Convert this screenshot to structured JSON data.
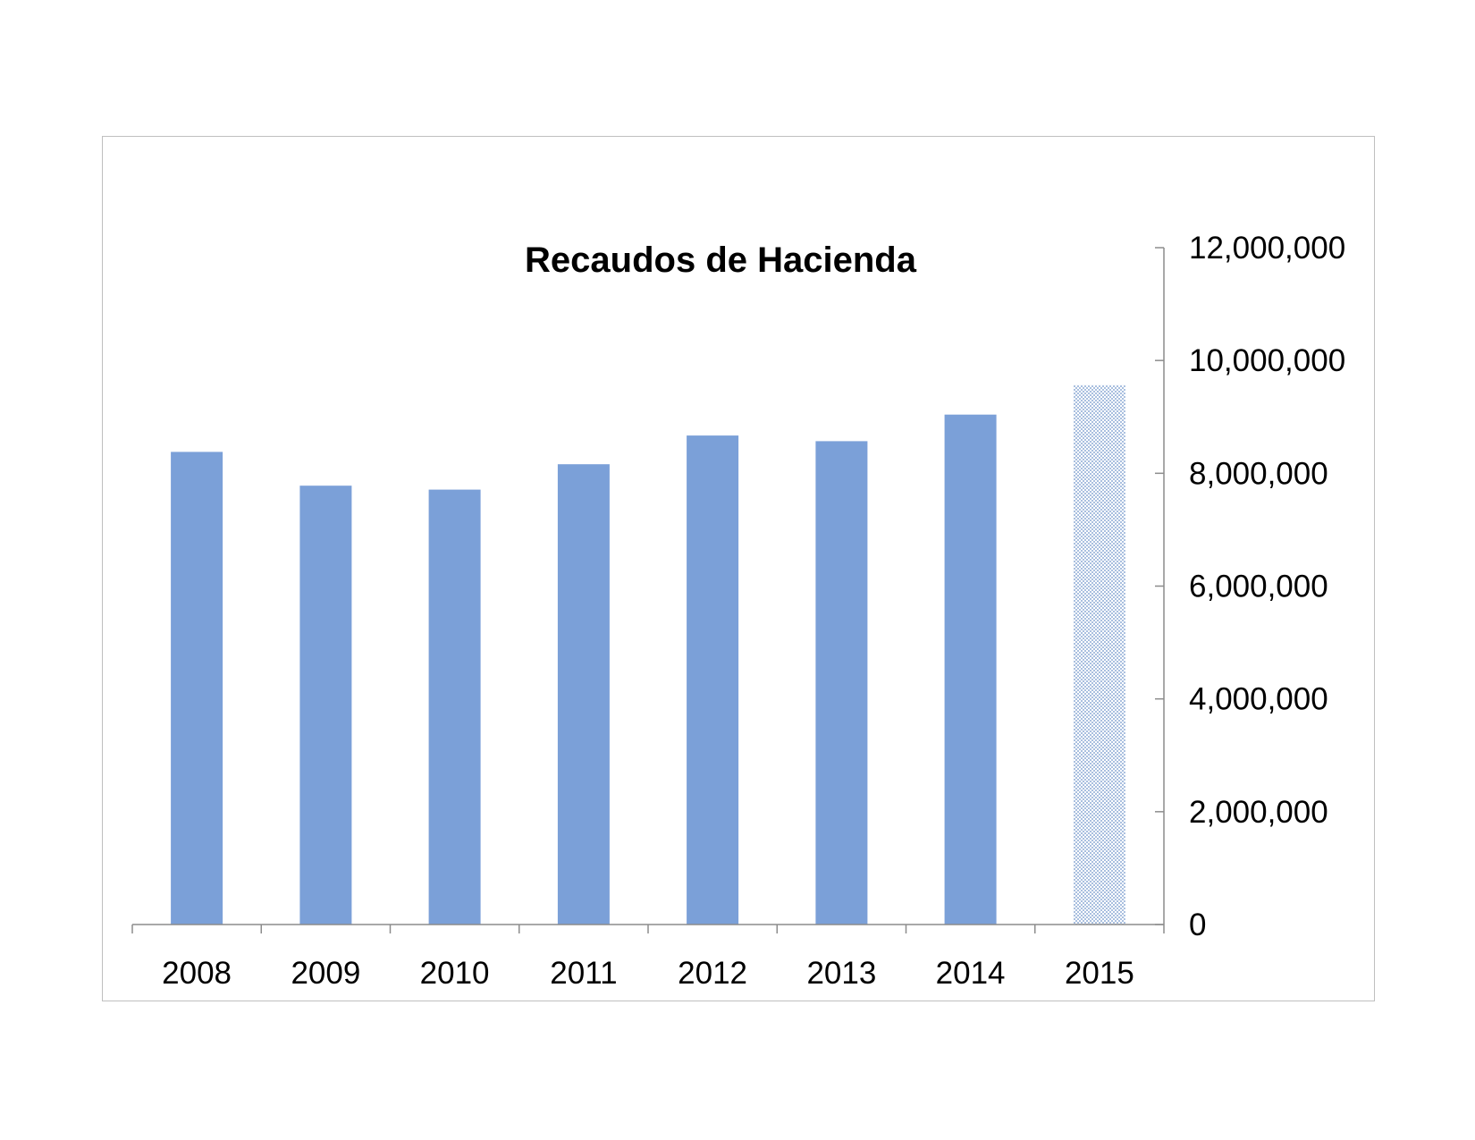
{
  "chart_data": {
    "type": "bar",
    "title": "Recaudos de Hacienda",
    "xlabel": "",
    "ylabel": "",
    "categories": [
      "2008",
      "2009",
      "2010",
      "2011",
      "2012",
      "2013",
      "2014",
      "2015"
    ],
    "values": [
      8380000,
      7780000,
      7710000,
      8160000,
      8670000,
      8570000,
      9040000,
      9560000
    ],
    "ylim": [
      0,
      12000000
    ],
    "yticks": [
      0,
      2000000,
      4000000,
      6000000,
      8000000,
      10000000,
      12000000
    ],
    "ytick_labels": [
      "0",
      "2,000,000",
      "4,000,000",
      "6,000,000",
      "8,000,000",
      "10,000,000",
      "12,000,000"
    ],
    "y_axis_side": "right",
    "grid": false,
    "legend": "none",
    "bar_color": "#7ba0d8",
    "highlight_pattern_color": "#a9bfdf",
    "highlight_category": "2015",
    "axis_color": "#8c8c8c"
  }
}
